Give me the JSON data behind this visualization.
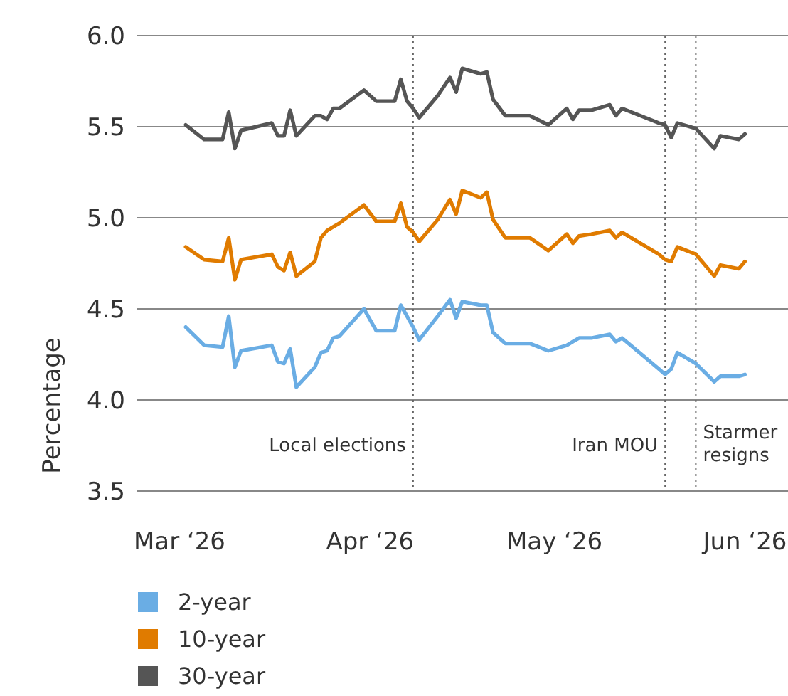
{
  "chart_data": {
    "type": "line",
    "ylabel": "Percentage",
    "x": [
      "2026-03-02",
      "2026-03-05",
      "2026-03-08",
      "2026-03-09",
      "2026-03-10",
      "2026-03-11",
      "2026-03-16",
      "2026-03-17",
      "2026-03-18",
      "2026-03-19",
      "2026-03-20",
      "2026-03-23",
      "2026-03-24",
      "2026-03-25",
      "2026-03-26",
      "2026-03-27",
      "2026-03-31",
      "2026-04-02",
      "2026-04-05",
      "2026-04-06",
      "2026-04-07",
      "2026-04-08",
      "2026-04-09",
      "2026-04-12",
      "2026-04-14",
      "2026-04-15",
      "2026-04-16",
      "2026-04-19",
      "2026-04-20",
      "2026-04-21",
      "2026-04-23",
      "2026-04-27",
      "2026-04-30",
      "2026-05-03",
      "2026-05-04",
      "2026-05-05",
      "2026-05-07",
      "2026-05-10",
      "2026-05-11",
      "2026-05-12",
      "2026-05-18",
      "2026-05-19",
      "2026-05-20",
      "2026-05-21",
      "2026-05-24",
      "2026-05-27",
      "2026-05-28",
      "2026-05-31",
      "2026-06-01"
    ],
    "series": [
      {
        "name": "2-year",
        "color": "#6aade4",
        "values": [
          4.4,
          4.3,
          4.29,
          4.46,
          4.18,
          4.27,
          4.3,
          4.21,
          4.2,
          4.28,
          4.07,
          4.18,
          4.26,
          4.27,
          4.34,
          4.35,
          4.5,
          4.38,
          4.38,
          4.52,
          4.46,
          4.4,
          4.33,
          4.46,
          4.55,
          4.45,
          4.54,
          4.52,
          4.52,
          4.37,
          4.31,
          4.31,
          4.27,
          4.3,
          4.32,
          4.34,
          4.34,
          4.36,
          4.32,
          4.34,
          4.17,
          4.14,
          4.17,
          4.26,
          4.2,
          4.1,
          4.13,
          4.13,
          4.14
        ]
      },
      {
        "name": "10-year",
        "color": "#e07b00",
        "values": [
          4.84,
          4.77,
          4.76,
          4.89,
          4.66,
          4.77,
          4.8,
          4.73,
          4.71,
          4.81,
          4.68,
          4.76,
          4.89,
          4.93,
          4.95,
          4.97,
          5.07,
          4.98,
          4.98,
          5.08,
          4.95,
          4.92,
          4.87,
          4.99,
          5.1,
          5.02,
          5.15,
          5.11,
          5.14,
          4.99,
          4.89,
          4.89,
          4.82,
          4.91,
          4.86,
          4.9,
          4.91,
          4.93,
          4.89,
          4.92,
          4.8,
          4.77,
          4.76,
          4.84,
          4.8,
          4.68,
          4.74,
          4.72,
          4.76
        ]
      },
      {
        "name": "30-year",
        "color": "#555555",
        "values": [
          5.51,
          5.43,
          5.43,
          5.58,
          5.38,
          5.48,
          5.52,
          5.45,
          5.45,
          5.59,
          5.45,
          5.56,
          5.56,
          5.54,
          5.6,
          5.6,
          5.7,
          5.64,
          5.64,
          5.76,
          5.64,
          5.6,
          5.55,
          5.67,
          5.77,
          5.69,
          5.82,
          5.79,
          5.8,
          5.65,
          5.56,
          5.56,
          5.51,
          5.6,
          5.54,
          5.59,
          5.59,
          5.62,
          5.56,
          5.6,
          5.52,
          5.51,
          5.44,
          5.52,
          5.49,
          5.38,
          5.45,
          5.43,
          5.46
        ]
      }
    ],
    "xlim": [
      "2026-02-22",
      "2026-06-08"
    ],
    "xticks": [
      {
        "value": "2026-03-01",
        "label": "Mar ‘26"
      },
      {
        "value": "2026-04-01",
        "label": "Apr ‘26"
      },
      {
        "value": "2026-05-01",
        "label": "May ‘26"
      },
      {
        "value": "2026-06-01",
        "label": "Jun ‘26"
      }
    ],
    "ylim": [
      3.5,
      6.0
    ],
    "yticks": [
      3.5,
      {
        "value": 4.0,
        "label": "4.0"
      },
      4.5,
      {
        "value": 5.0,
        "label": "5.0"
      },
      5.5,
      {
        "value": 6.0,
        "label": "6.0"
      }
    ],
    "grid": "y",
    "legend": "bottom left",
    "marker": "none",
    "line_style": "solid",
    "ref_lines": [
      {
        "axis": "x",
        "value": "2026-04-08",
        "label": "Local elections",
        "line_style": "dotted",
        "color": "#666666"
      },
      {
        "axis": "x",
        "value": "2026-05-19",
        "label": "Iran MOU",
        "line_style": "dotted",
        "color": "#666666"
      },
      {
        "axis": "x",
        "value": "2026-05-24",
        "label": "Starmer resigns",
        "line_style": "dotted",
        "color": "#666666"
      }
    ]
  }
}
